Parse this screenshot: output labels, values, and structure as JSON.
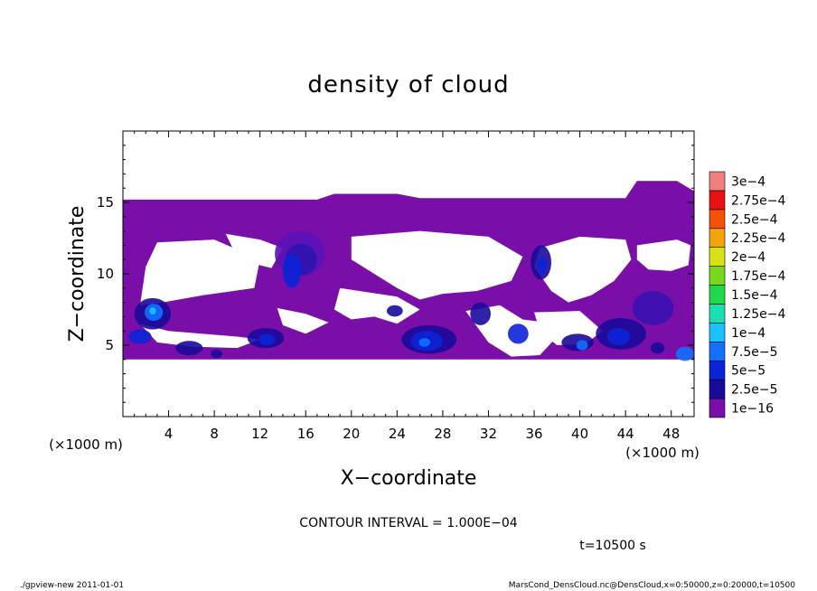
{
  "chart_data": {
    "type": "heatmap",
    "title": "density of cloud",
    "xlabel": "X−coordinate",
    "ylabel": "Z−coordinate",
    "x_unit": "(×1000 m)",
    "y_unit": "(×1000 m)",
    "xlim": [
      0,
      50
    ],
    "ylim": [
      0,
      20
    ],
    "x_ticks": [
      4,
      8,
      12,
      16,
      20,
      24,
      28,
      32,
      36,
      40,
      44,
      48
    ],
    "y_ticks": [
      5,
      10,
      15
    ],
    "legend_levels": [
      "1e−16",
      "2.5e−5",
      "5e−5",
      "7.5e−5",
      "1e−4",
      "1.25e−4",
      "1.5e−4",
      "1.75e−4",
      "2e−4",
      "2.25e−4",
      "2.5e−4",
      "2.75e−4",
      "3e−4"
    ],
    "legend_colors": [
      "#7a0ea8",
      "#1a0a9a",
      "#0b24d8",
      "#1270ff",
      "#1ac0ff",
      "#18e0b0",
      "#20d848",
      "#7ad81a",
      "#d8e018",
      "#f4a40a",
      "#f4520a",
      "#e81212",
      "#f08080"
    ],
    "cloud_base_km": 4,
    "cloud_top_km": 15.2,
    "contour_interval": "CONTOUR INTERVAL = 1.000E−04",
    "time_label": "t=10500 s",
    "footer_left": "./gpview-new  2011-01-01",
    "footer_right": "MarsCond_DensCloud.nc@DensCloud,x=0:50000,z=0:20000,t=10500"
  }
}
